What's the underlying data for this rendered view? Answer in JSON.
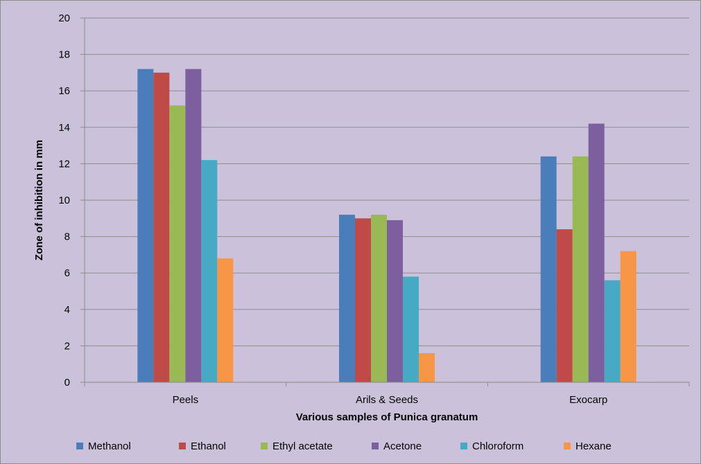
{
  "chart_data": {
    "type": "bar",
    "title": "",
    "xlabel": "Various samples of Punica granatum",
    "ylabel": "Zone of inhibition in mm",
    "categories": [
      "Peels",
      "Arils & Seeds",
      "Exocarp"
    ],
    "ylim": [
      0,
      20
    ],
    "yticks": [
      0,
      2,
      4,
      6,
      8,
      10,
      12,
      14,
      16,
      18,
      20
    ],
    "grid": true,
    "legend_position": "bottom",
    "series": [
      {
        "name": "Methanol",
        "color": "#4a7ebb",
        "values": [
          17.2,
          9.2,
          12.4
        ]
      },
      {
        "name": "Ethanol",
        "color": "#be4b48",
        "values": [
          17.0,
          9.0,
          8.4
        ]
      },
      {
        "name": "Ethyl acetate",
        "color": "#98b954",
        "values": [
          15.2,
          9.2,
          12.4
        ]
      },
      {
        "name": "Acetone",
        "color": "#7d5fa0",
        "values": [
          17.2,
          8.9,
          14.2
        ]
      },
      {
        "name": "Chloroform",
        "color": "#46aac5",
        "values": [
          12.2,
          5.8,
          5.6
        ]
      },
      {
        "name": "Hexane",
        "color": "#f79646",
        "values": [
          6.8,
          1.6,
          7.2
        ]
      }
    ]
  }
}
